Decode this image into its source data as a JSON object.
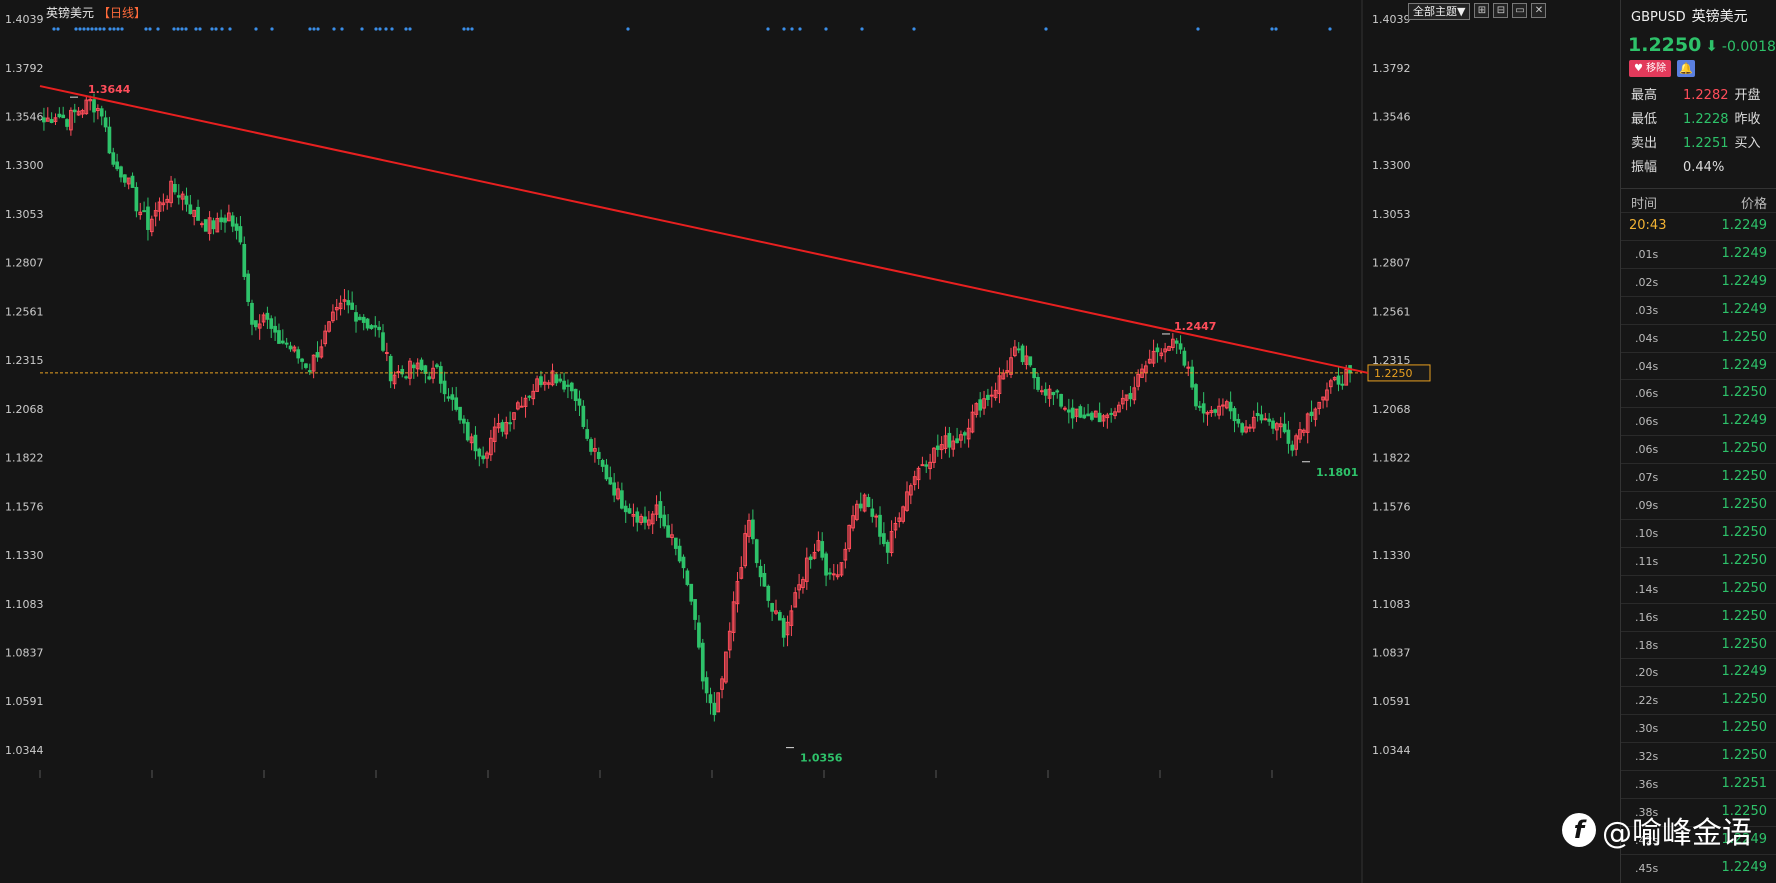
{
  "chart_header": {
    "title": "英镑美元",
    "period": "【日线】",
    "theme_button": "全部主题▼",
    "window_buttons": [
      "⊞",
      "⊟",
      "▭",
      "✕"
    ]
  },
  "colors": {
    "up": "#ff4d5a",
    "down": "#2ec26a",
    "trendline": "#e82020",
    "current_line": "#e8a020",
    "background": "#151515"
  },
  "chart_data": {
    "type": "candlestick",
    "symbol": "英镑美元",
    "period": "日线",
    "y_axis": {
      "ticks": [
        1.4039,
        1.3792,
        1.3546,
        1.33,
        1.3053,
        1.2807,
        1.2561,
        1.2315,
        1.2068,
        1.1822,
        1.1576,
        1.133,
        1.1083,
        1.0837,
        1.0591,
        1.0344
      ],
      "labels": [
        "1.4039",
        "1.3792",
        "1.3546",
        "1.3300",
        "1.3053",
        "1.2807",
        "1.2561",
        "1.2315",
        "1.2068",
        "1.1822",
        "1.1576",
        "1.1330",
        "1.1083",
        "1.0837",
        "1.0591",
        "1.0344"
      ],
      "range": [
        1.4039,
        1.0344
      ]
    },
    "annotations": [
      {
        "label": "1.3644",
        "value": 1.3644,
        "kind": "high",
        "color": "#ff4d5a"
      },
      {
        "label": "1.2447",
        "value": 1.2447,
        "kind": "high",
        "color": "#ff4d5a"
      },
      {
        "label": "1.0356",
        "value": 1.0356,
        "kind": "low",
        "color": "#2ec26a"
      },
      {
        "label": "1.1801",
        "value": 1.1801,
        "kind": "low",
        "color": "#2ec26a"
      }
    ],
    "current_price": {
      "label": "1.2250",
      "value": 1.225
    },
    "trendline": {
      "from_value": 1.37,
      "to_value": 1.225
    },
    "close_path": [
      1.352,
      1.356,
      1.353,
      1.358,
      1.362,
      1.357,
      1.33,
      1.325,
      1.31,
      1.3,
      1.31,
      1.318,
      1.315,
      1.305,
      1.3,
      1.3,
      1.305,
      1.29,
      1.25,
      1.255,
      1.242,
      1.24,
      1.233,
      1.228,
      1.24,
      1.252,
      1.26,
      1.255,
      1.25,
      1.245,
      1.225,
      1.225,
      1.228,
      1.225,
      1.225,
      1.215,
      1.2,
      1.19,
      1.185,
      1.195,
      1.2,
      1.21,
      1.215,
      1.222,
      1.225,
      1.22,
      1.215,
      1.19,
      1.18,
      1.17,
      1.16,
      1.155,
      1.15,
      1.155,
      1.145,
      1.13,
      1.11,
      1.07,
      1.05,
      1.08,
      1.12,
      1.15,
      1.12,
      1.105,
      1.095,
      1.11,
      1.13,
      1.14,
      1.12,
      1.13,
      1.155,
      1.16,
      1.15,
      1.135,
      1.155,
      1.17,
      1.18,
      1.185,
      1.19,
      1.192,
      1.2,
      1.21,
      1.215,
      1.225,
      1.235,
      1.23,
      1.22,
      1.215,
      1.21,
      1.205,
      1.2,
      1.205,
      1.2,
      1.21,
      1.215,
      1.225,
      1.235,
      1.24,
      1.238,
      1.225,
      1.205,
      1.208,
      1.21,
      1.2,
      1.198,
      1.205,
      1.2,
      1.198,
      1.19,
      1.2,
      1.21,
      1.215,
      1.222,
      1.225
    ]
  },
  "markers": {
    "count": 48
  },
  "side_panel": {
    "code": "GBPUSD",
    "name": "英镑美元",
    "price": "1.2250",
    "arrow": "⬇",
    "change": "-0.0018",
    "change_trail": "-",
    "remove_label": "♥ 移除",
    "bell_icon": "🔔",
    "stats": [
      {
        "label": "最高",
        "value": "1.2282",
        "color": "r",
        "more": "开盘"
      },
      {
        "label": "最低",
        "value": "1.2228",
        "color": "g",
        "more": "昨收"
      },
      {
        "label": "卖出",
        "value": "1.2251",
        "color": "g",
        "more": "买入"
      },
      {
        "label": "振幅",
        "value": "0.44%",
        "color": "w",
        "more": ""
      }
    ],
    "ticks_header": {
      "time": "时间",
      "price": "价格"
    },
    "ticks": [
      {
        "t": "20:43",
        "p": "1.2249"
      },
      {
        "t": ".01s",
        "p": "1.2249"
      },
      {
        "t": ".02s",
        "p": "1.2249"
      },
      {
        "t": ".03s",
        "p": "1.2249"
      },
      {
        "t": ".04s",
        "p": "1.2250"
      },
      {
        "t": ".04s",
        "p": "1.2249"
      },
      {
        "t": ".06s",
        "p": "1.2250"
      },
      {
        "t": ".06s",
        "p": "1.2249"
      },
      {
        "t": ".06s",
        "p": "1.2250"
      },
      {
        "t": ".07s",
        "p": "1.2250"
      },
      {
        "t": ".09s",
        "p": "1.2250"
      },
      {
        "t": ".10s",
        "p": "1.2250"
      },
      {
        "t": ".11s",
        "p": "1.2250"
      },
      {
        "t": ".14s",
        "p": "1.2250"
      },
      {
        "t": ".16s",
        "p": "1.2250"
      },
      {
        "t": ".18s",
        "p": "1.2250"
      },
      {
        "t": ".20s",
        "p": "1.2249"
      },
      {
        "t": ".22s",
        "p": "1.2250"
      },
      {
        "t": ".30s",
        "p": "1.2250"
      },
      {
        "t": ".32s",
        "p": "1.2250"
      },
      {
        "t": ".36s",
        "p": "1.2251"
      },
      {
        "t": ".38s",
        "p": "1.2250"
      },
      {
        "t": ".42s",
        "p": "1.2249"
      },
      {
        "t": ".45s",
        "p": "1.2249"
      }
    ]
  },
  "watermark": {
    "text": "@喻峰金语",
    "icon": "f"
  }
}
